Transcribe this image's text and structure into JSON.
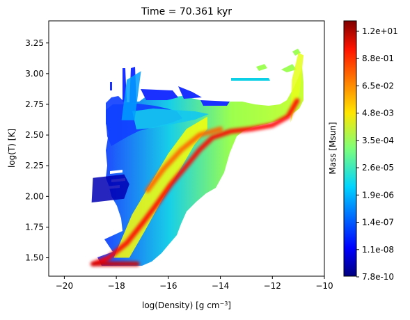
{
  "chart_data": {
    "type": "heatmap",
    "title": "Time = 70.361 kyr",
    "xlabel_main": "log(Density) [g cm",
    "xlabel_exp": "−3",
    "xlabel_close": "]",
    "ylabel": "log(T) [K]",
    "xlim": [
      -20.6,
      -10
    ],
    "ylim": [
      1.35,
      3.43
    ],
    "x_ticks": [
      {
        "value": -20,
        "label": "−20"
      },
      {
        "value": -18,
        "label": "−18"
      },
      {
        "value": -16,
        "label": "−16"
      },
      {
        "value": -14,
        "label": "−14"
      },
      {
        "value": -12,
        "label": "−12"
      },
      {
        "value": -10,
        "label": "−10"
      }
    ],
    "y_ticks": [
      {
        "value": 1.5,
        "label": "1.50"
      },
      {
        "value": 1.75,
        "label": "1.75"
      },
      {
        "value": 2.0,
        "label": "2.00"
      },
      {
        "value": 2.25,
        "label": "2.25"
      },
      {
        "value": 2.5,
        "label": "2.50"
      },
      {
        "value": 2.75,
        "label": "2.75"
      },
      {
        "value": 3.0,
        "label": "3.00"
      },
      {
        "value": 3.25,
        "label": "3.25"
      }
    ],
    "colorbar": {
      "label": "Mass [Msun]",
      "colormap": "jet",
      "scale": "log",
      "ticks": [
        "7.8e-10",
        "1.1e-08",
        "1.4e-07",
        "1.9e-06",
        "2.6e-05",
        "3.5e-04",
        "4.8e-03",
        "6.5e-02",
        "8.8e-01",
        "1.2e+01"
      ]
    },
    "regions": [
      {
        "name": "low-mass tail",
        "level": 0.05,
        "points": [
          [
            -18.95,
            1.95
          ],
          [
            -17.7,
            1.98
          ],
          [
            -17.5,
            2.1
          ],
          [
            -17.7,
            2.18
          ],
          [
            -18.9,
            2.15
          ]
        ]
      },
      {
        "name": "dense branch",
        "level": 0.62,
        "points": [
          [
            -18.1,
            1.5
          ],
          [
            -17.5,
            1.5
          ],
          [
            -16.9,
            1.72
          ],
          [
            -16.3,
            1.95
          ],
          [
            -15.6,
            2.2
          ],
          [
            -15.0,
            2.42
          ],
          [
            -14.5,
            2.55
          ],
          [
            -14.5,
            2.65
          ],
          [
            -15.3,
            2.55
          ],
          [
            -16.0,
            2.35
          ],
          [
            -16.7,
            2.1
          ],
          [
            -17.4,
            1.85
          ]
        ]
      },
      {
        "name": "high-temperature spikes",
        "level": 0.28,
        "points": [
          [
            -17.8,
            2.62
          ],
          [
            -17.3,
            2.62
          ],
          [
            -17.05,
            3.02
          ],
          [
            -17.6,
            2.95
          ]
        ]
      },
      {
        "name": "dense tail",
        "level": 0.6,
        "points": [
          [
            -11.3,
            2.6
          ],
          [
            -10.95,
            2.85
          ],
          [
            -10.8,
            3.15
          ],
          [
            -11.0,
            3.17
          ],
          [
            -11.25,
            2.95
          ]
        ]
      }
    ],
    "ridges": [
      {
        "name": "main ridge",
        "level": 0.95,
        "points": [
          [
            -18.9,
            1.45
          ],
          [
            -18.3,
            1.5
          ],
          [
            -17.6,
            1.62
          ],
          [
            -17.0,
            1.78
          ],
          [
            -16.4,
            1.95
          ],
          [
            -15.9,
            2.1
          ],
          [
            -15.3,
            2.25
          ],
          [
            -14.8,
            2.38
          ],
          [
            -14.3,
            2.48
          ],
          [
            -13.6,
            2.53
          ],
          [
            -12.8,
            2.55
          ],
          [
            -12.0,
            2.58
          ],
          [
            -11.4,
            2.65
          ],
          [
            -11.05,
            2.78
          ]
        ]
      },
      {
        "name": "base ridge",
        "level": 1.0,
        "points": [
          [
            -18.9,
            1.45
          ],
          [
            -17.2,
            1.45
          ]
        ]
      },
      {
        "name": "secondary ridge",
        "level": 0.85,
        "points": [
          [
            -16.8,
            2.05
          ],
          [
            -16.2,
            2.22
          ],
          [
            -15.5,
            2.38
          ],
          [
            -14.8,
            2.5
          ],
          [
            -14.0,
            2.55
          ]
        ]
      }
    ]
  }
}
